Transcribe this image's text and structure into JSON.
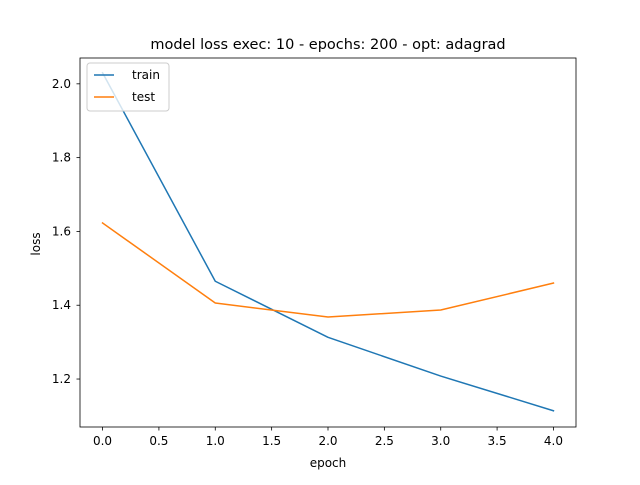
{
  "chart_data": {
    "type": "line",
    "title": "model loss exec: 10 - epochs: 200 - opt: adagrad",
    "xlabel": "epoch",
    "ylabel": "loss",
    "x": [
      0,
      1,
      2,
      3,
      4
    ],
    "xlim": [
      -0.2,
      4.2
    ],
    "ylim": [
      1.07,
      2.07
    ],
    "xticks": [
      0.0,
      0.5,
      1.0,
      1.5,
      2.0,
      2.5,
      3.0,
      3.5,
      4.0
    ],
    "xtick_labels": [
      "0.0",
      "0.5",
      "1.0",
      "1.5",
      "2.0",
      "2.5",
      "3.0",
      "3.5",
      "4.0"
    ],
    "yticks": [
      1.2,
      1.4,
      1.6,
      1.8,
      2.0
    ],
    "ytick_labels": [
      "1.2",
      "1.4",
      "1.6",
      "1.8",
      "2.0"
    ],
    "grid": false,
    "legend_position": "top-left",
    "series": [
      {
        "name": "train",
        "color": "#1f77b4",
        "values": [
          2.03,
          1.465,
          1.313,
          1.208,
          1.114
        ]
      },
      {
        "name": "test",
        "color": "#ff7f0e",
        "values": [
          1.623,
          1.406,
          1.368,
          1.387,
          1.46
        ]
      }
    ]
  }
}
